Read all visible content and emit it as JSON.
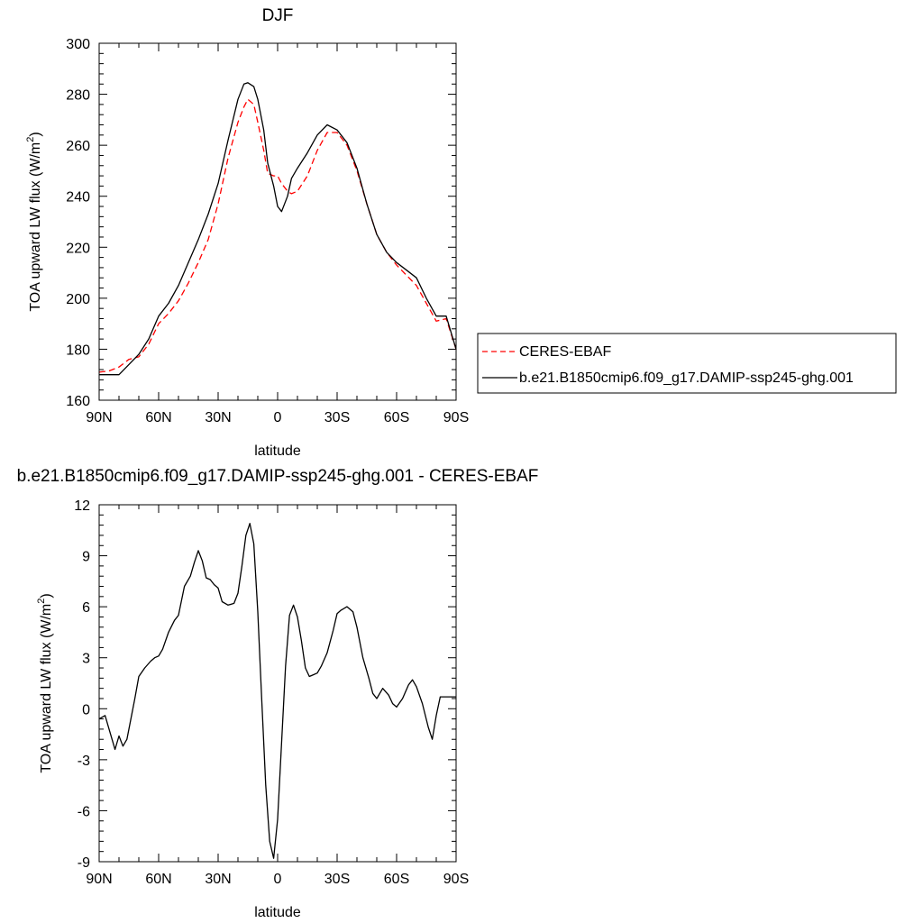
{
  "chart_data": [
    {
      "type": "line",
      "title": "DJF",
      "xlabel": "latitude",
      "ylabel_main": "TOA upward LW flux (W/m",
      "ylabel_sup": "2",
      "ylabel_close": ")",
      "xlim": [
        90,
        -90
      ],
      "ylim": [
        160,
        300
      ],
      "x_ticks": [
        90,
        60,
        30,
        0,
        -30,
        -60,
        -90
      ],
      "x_tick_labels": [
        "90N",
        "60N",
        "30N",
        "0",
        "30S",
        "60S",
        "90S"
      ],
      "y_ticks": [
        160,
        180,
        200,
        220,
        240,
        260,
        280,
        300
      ],
      "y_tick_labels": [
        "160",
        "180",
        "200",
        "220",
        "240",
        "260",
        "280",
        "300"
      ],
      "legend_position": "right",
      "series": [
        {
          "name": "CERES-EBAF",
          "color": "#ff0000",
          "dash": "dashed",
          "x": [
            90,
            85,
            80,
            75,
            70,
            65,
            60,
            55,
            50,
            45,
            40,
            35,
            30,
            25,
            20,
            17,
            15,
            12,
            10,
            7,
            5,
            2,
            0,
            -2,
            -5,
            -7,
            -10,
            -15,
            -20,
            -25,
            -30,
            -35,
            -40,
            -45,
            -50,
            -55,
            -60,
            -65,
            -70,
            -75,
            -80,
            -85,
            -90
          ],
          "y": [
            171,
            171.5,
            173,
            176,
            177,
            182,
            190,
            194,
            199,
            206,
            214,
            223,
            237,
            255,
            269,
            275,
            278,
            276,
            269,
            258,
            249,
            248,
            248,
            245,
            242,
            241,
            242,
            248,
            258,
            265,
            265,
            260,
            250,
            237,
            225,
            218,
            213,
            209,
            205,
            198,
            191,
            192,
            180
          ]
        },
        {
          "name": "b.e21.B1850cmip6.f09_g17.DAMIP-ssp245-ghg.001",
          "color": "#000000",
          "dash": "solid",
          "x": [
            90,
            85,
            80,
            75,
            70,
            65,
            60,
            55,
            50,
            45,
            40,
            35,
            30,
            25,
            20,
            17,
            15,
            12,
            10,
            7,
            5,
            2,
            0,
            -2,
            -5,
            -7,
            -10,
            -15,
            -20,
            -25,
            -30,
            -35,
            -40,
            -45,
            -50,
            -55,
            -60,
            -65,
            -70,
            -75,
            -80,
            -85,
            -90
          ],
          "y": [
            170,
            170,
            170,
            174,
            178,
            184,
            193,
            198,
            205,
            214,
            223,
            233,
            245,
            262,
            278,
            284,
            284.5,
            283,
            278,
            266,
            253,
            244,
            236,
            234,
            240,
            247,
            251,
            257,
            264,
            268,
            266,
            261,
            251,
            237,
            225,
            218,
            214,
            211,
            208,
            200,
            193,
            193,
            180
          ]
        }
      ]
    },
    {
      "type": "line",
      "title": "b.e21.B1850cmip6.f09_g17.DAMIP-ssp245-ghg.001 - CERES-EBAF",
      "xlabel": "latitude",
      "ylabel_main": "TOA upward LW flux (W/m",
      "ylabel_sup": "2",
      "ylabel_close": ")",
      "xlim": [
        90,
        -90
      ],
      "ylim": [
        -9,
        12
      ],
      "x_ticks": [
        90,
        60,
        30,
        0,
        -30,
        -60,
        -90
      ],
      "x_tick_labels": [
        "90N",
        "60N",
        "30N",
        "0",
        "30S",
        "60S",
        "90S"
      ],
      "y_ticks": [
        -9,
        -6,
        -3,
        0,
        3,
        6,
        9,
        12
      ],
      "y_tick_labels": [
        "-9",
        "-6",
        "-3",
        "0",
        "3",
        "6",
        "9",
        "12"
      ],
      "series": [
        {
          "color": "#000000",
          "dash": "solid",
          "x": [
            90,
            87,
            85,
            82,
            80,
            78,
            76,
            74,
            72,
            70,
            67,
            64,
            62,
            60,
            58,
            55,
            52,
            50,
            47,
            44,
            42,
            40,
            38,
            36,
            34,
            32,
            30,
            28,
            25,
            22,
            20,
            18,
            16,
            14,
            12,
            10,
            8,
            6,
            4,
            2,
            0,
            -2,
            -4,
            -6,
            -8,
            -10,
            -12,
            -14,
            -16,
            -18,
            -20,
            -22,
            -25,
            -28,
            -30,
            -32,
            -35,
            -38,
            -40,
            -43,
            -46,
            -48,
            -50,
            -53,
            -56,
            -58,
            -60,
            -63,
            -66,
            -68,
            -70,
            -73,
            -76,
            -78,
            -80,
            -82,
            -84,
            -86,
            -88,
            -90
          ],
          "y": [
            -0.6,
            -0.4,
            -1.2,
            -2.4,
            -1.6,
            -2.2,
            -1.8,
            -0.6,
            0.6,
            1.9,
            2.4,
            2.8,
            3.0,
            3.1,
            3.5,
            4.5,
            5.2,
            5.5,
            7.2,
            7.8,
            8.6,
            9.3,
            8.7,
            7.7,
            7.6,
            7.3,
            7.1,
            6.3,
            6.1,
            6.2,
            6.8,
            8.4,
            10.2,
            10.9,
            9.7,
            5.7,
            0.5,
            -4.5,
            -7.8,
            -8.8,
            -6.5,
            -2.0,
            2.5,
            5.5,
            6.1,
            5.4,
            4.0,
            2.4,
            1.9,
            2.0,
            2.1,
            2.5,
            3.3,
            4.6,
            5.6,
            5.8,
            6.0,
            5.7,
            4.8,
            3.0,
            1.8,
            0.9,
            0.6,
            1.2,
            0.8,
            0.3,
            0.1,
            0.6,
            1.4,
            1.7,
            1.3,
            0.3,
            -1.1,
            -1.8,
            -0.4,
            0.7,
            0.7,
            0.7,
            0.7,
            0.7
          ]
        }
      ]
    }
  ]
}
